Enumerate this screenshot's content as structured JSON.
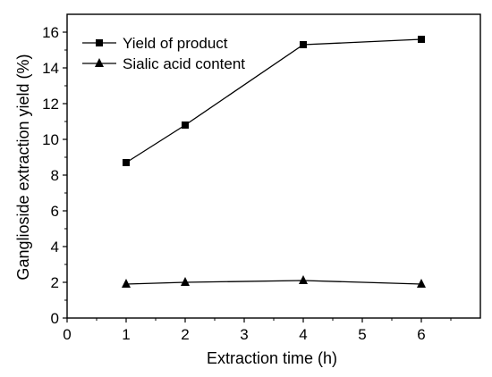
{
  "chart_data": {
    "type": "line",
    "title": "",
    "xlabel": "Extraction time (h)",
    "ylabel": "Ganglioside extraction yield (%)",
    "xlim": [
      0,
      7
    ],
    "ylim": [
      0,
      17
    ],
    "xticks": [
      0,
      1,
      2,
      3,
      4,
      5,
      6
    ],
    "yticks": [
      0,
      2,
      4,
      6,
      8,
      10,
      12,
      14,
      16
    ],
    "grid": false,
    "legend_position": "top-left",
    "series": [
      {
        "name": "Yield of product",
        "marker": "square",
        "color": "#000000",
        "x": [
          1,
          2,
          4,
          6
        ],
        "y": [
          8.7,
          10.8,
          15.3,
          15.6
        ]
      },
      {
        "name": "Sialic acid content",
        "marker": "triangle",
        "color": "#000000",
        "x": [
          1,
          2,
          4,
          6
        ],
        "y": [
          1.9,
          2.0,
          2.1,
          1.9
        ]
      }
    ]
  }
}
